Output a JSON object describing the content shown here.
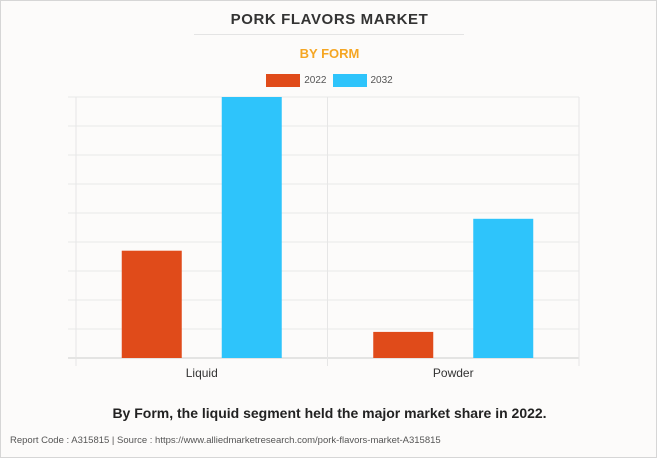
{
  "header": {
    "title": "PORK FLAVORS MARKET",
    "subtitle": "BY FORM"
  },
  "legend": [
    {
      "label": "2022",
      "color": "#e04b1a"
    },
    {
      "label": "2032",
      "color": "#2ec4fb"
    }
  ],
  "chart_data": {
    "type": "bar",
    "categories": [
      "Liquid",
      "Powder"
    ],
    "series": [
      {
        "name": "2022",
        "color": "#e04b1a",
        "values": [
          3.7,
          0.9
        ]
      },
      {
        "name": "2032",
        "color": "#2ec4fb",
        "values": [
          9.0,
          4.8
        ]
      }
    ],
    "ylim": [
      0,
      9
    ],
    "title": "PORK FLAVORS MARKET",
    "subtitle": "BY FORM",
    "grid": true,
    "legend_position": "top-center"
  },
  "caption": "By Form, the liquid segment held the major market share in 2022.",
  "footer": "Report Code : A315815  |  Source : https://www.alliedmarketresearch.com/pork-flavors-market-A315815"
}
